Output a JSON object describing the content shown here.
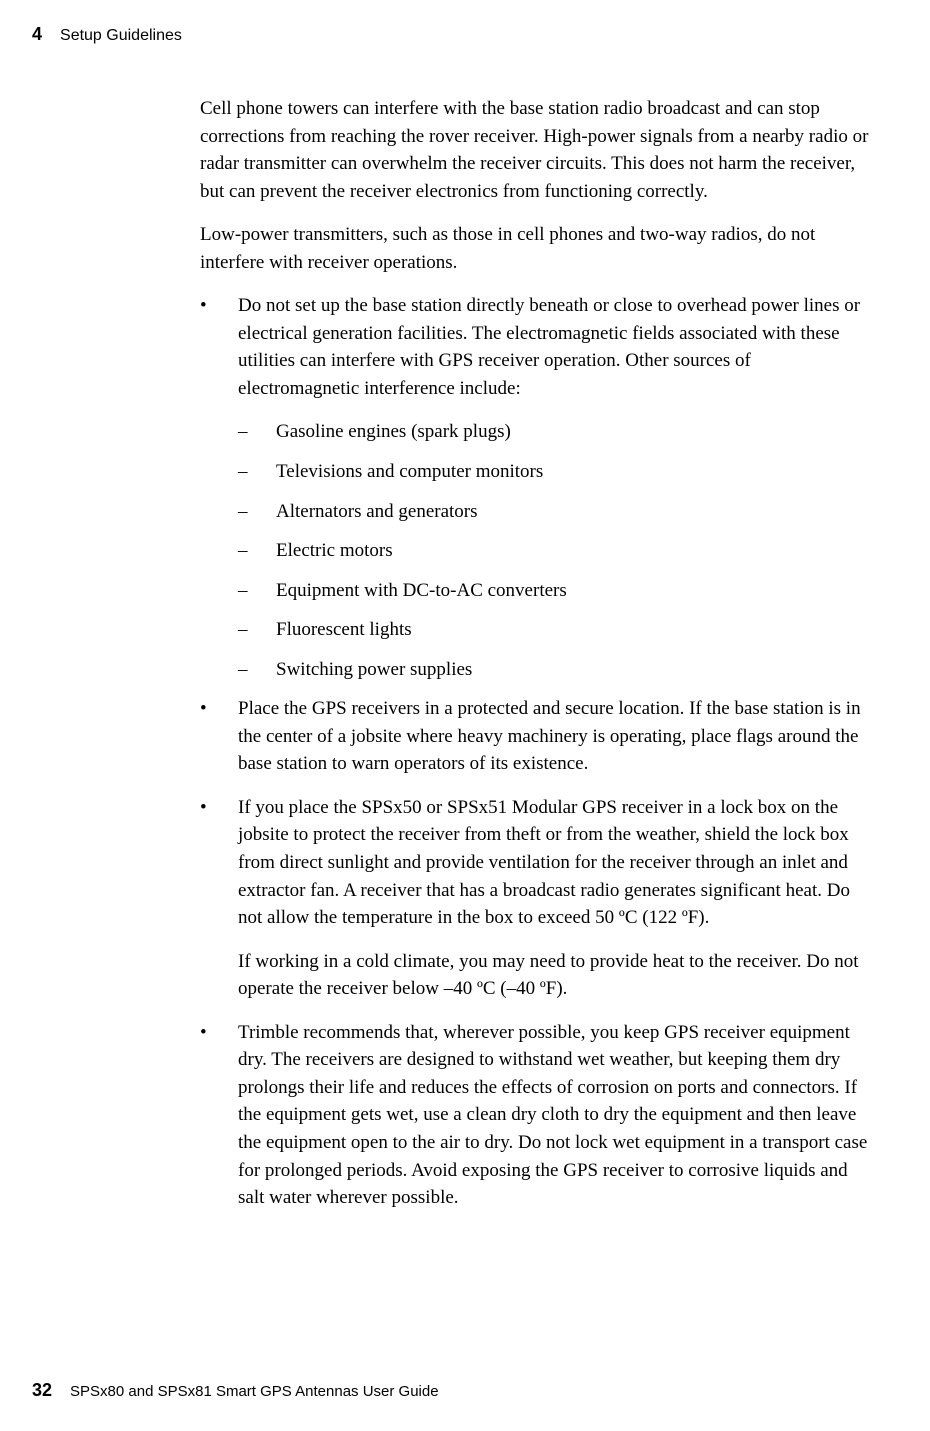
{
  "header": {
    "chapter_number": "4",
    "chapter_title": "Setup Guidelines"
  },
  "content": {
    "para1": "Cell phone towers can interfere with the base station radio broadcast and can stop corrections from reaching the rover receiver. High-power signals from a nearby radio or radar transmitter can overwhelm the receiver circuits. This does not harm the receiver, but can prevent the receiver electronics from functioning correctly.",
    "para2": "Low-power transmitters, such as those in cell phones and two-way radios, do not interfere with receiver operations.",
    "bullet1": "Do not set up the base station directly beneath or close to overhead power lines or electrical generation facilities. The electromagnetic fields associated with these utilities can interfere with GPS receiver operation. Other sources of electromagnetic interference include:",
    "sub1": "Gasoline engines (spark plugs)",
    "sub2": "Televisions and computer monitors",
    "sub3": "Alternators and generators",
    "sub4": "Electric motors",
    "sub5": "Equipment with DC-to-AC converters",
    "sub6": "Fluorescent lights",
    "sub7": "Switching power supplies",
    "bullet2": "Place the GPS receivers in a protected and secure location. If the base station is in the center of a jobsite where heavy machinery is operating, place flags around the base station to warn operators of its existence.",
    "bullet3": "If you place the SPSx50 or SPSx51 Modular GPS receiver in a lock box on the jobsite to protect the receiver from theft or from the weather, shield the lock box from direct sunlight and provide ventilation for the receiver through an inlet and extractor fan. A receiver that has a broadcast radio generates significant heat. Do not allow the temperature in the box to exceed 50 ºC (122 ºF).",
    "bullet3_para": "If working in a cold climate, you may need to provide heat to the receiver. Do not operate the receiver below –40 ºC (–40 ºF).",
    "bullet4": "Trimble recommends that, wherever possible, you keep GPS receiver equipment dry. The receivers are designed to withstand wet weather, but keeping them dry prolongs their life and reduces the effects of corrosion on ports and connectors. If the equipment gets wet, use a clean dry cloth to dry the equipment and then leave the equipment open to the air to dry. Do not lock wet equipment in a transport case for prolonged periods. Avoid exposing the GPS receiver to corrosive liquids and salt water wherever possible."
  },
  "footer": {
    "page_number": "32",
    "doc_title": "SPSx80 and SPSx81 Smart GPS Antennas User Guide"
  }
}
